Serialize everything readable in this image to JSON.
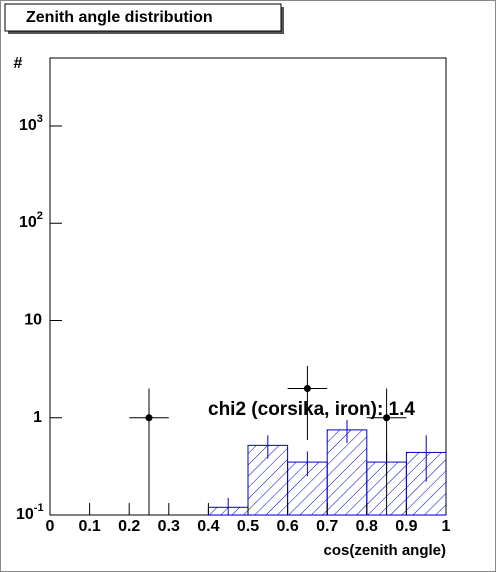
{
  "chart_data": {
    "type": "histogram",
    "title": "Zenith angle distribution",
    "x_label": "cos(zenith angle)",
    "y_label": "#",
    "annotation": "chi2 (corsika, iron): 1.4",
    "bins": [
      0,
      0.1,
      0.2,
      0.3,
      0.4,
      0.5,
      0.6,
      0.7,
      0.8,
      0.9,
      1
    ],
    "counts": [
      0,
      0,
      0,
      0,
      0.12,
      0.52,
      0.35,
      0.75,
      0.35,
      0.44
    ],
    "errors": [
      0,
      0,
      0,
      0,
      0.03,
      0.14,
      0.1,
      0.2,
      0.1,
      0.22
    ],
    "color": "#0000cc",
    "points": {
      "x": [
        0.25,
        0.65,
        0.85
      ],
      "values": [
        1,
        2,
        1
      ],
      "errors": [
        1,
        1.41,
        1
      ],
      "xerr": 0.05,
      "color": "#000000"
    },
    "xlim": [
      0,
      1
    ],
    "xticks": [
      0,
      0.1,
      0.2,
      0.3,
      0.4,
      0.5,
      0.6,
      0.7,
      0.8,
      0.9,
      1
    ],
    "ylim": [
      0.1,
      5000
    ],
    "log_y": true,
    "yticks": [
      {
        "value": 0.1,
        "label": "10",
        "exponent": "-1"
      },
      1,
      10,
      {
        "value": 100,
        "label": "10",
        "exponent": "2"
      },
      {
        "value": 1000,
        "label": "10",
        "exponent": "3"
      }
    ]
  }
}
